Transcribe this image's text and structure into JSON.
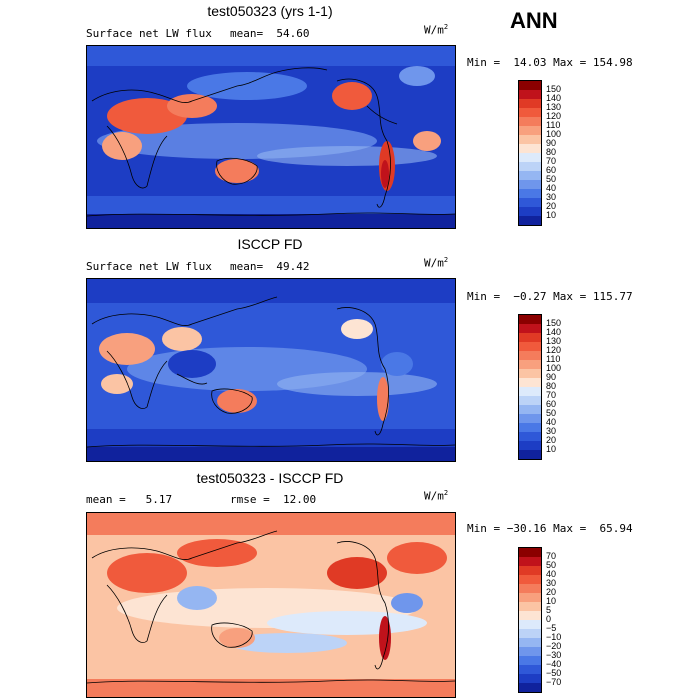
{
  "season": "ANN",
  "panels": [
    {
      "title": "test050323 (yrs 1-1)",
      "left_text": "Surface net LW flux",
      "right_text": "mean=  54.60",
      "units_base": "W/m",
      "units_exp": "2",
      "minmax": "Min =  14.03 Max = 154.98",
      "levels": [
        "150",
        "140",
        "130",
        "120",
        "110",
        "100",
        "90",
        "80",
        "70",
        "60",
        "50",
        "40",
        "30",
        "20",
        "10"
      ],
      "colors": [
        "#8b0000",
        "#c0121b",
        "#e03a25",
        "#f05a3c",
        "#f47c5c",
        "#f8a07e",
        "#fbc4a4",
        "#fde4d3",
        "#ddeafb",
        "#bcd3f7",
        "#95b6f2",
        "#6f96ec",
        "#4a78e6",
        "#2f58d8",
        "#1d3dc4",
        "#10229d"
      ]
    },
    {
      "title": "ISCCP FD",
      "left_text": "Surface net LW flux",
      "right_text": "mean=  49.42",
      "units_base": "W/m",
      "units_exp": "2",
      "minmax": "Min =  −0.27 Max = 115.77",
      "levels": [
        "150",
        "140",
        "130",
        "120",
        "110",
        "100",
        "90",
        "80",
        "70",
        "60",
        "50",
        "40",
        "30",
        "20",
        "10"
      ],
      "colors": [
        "#8b0000",
        "#c0121b",
        "#e03a25",
        "#f05a3c",
        "#f47c5c",
        "#f8a07e",
        "#fbc4a4",
        "#fde4d3",
        "#ddeafb",
        "#bcd3f7",
        "#95b6f2",
        "#6f96ec",
        "#4a78e6",
        "#2f58d8",
        "#1d3dc4",
        "#10229d"
      ]
    },
    {
      "title": "test050323 - ISCCP FD",
      "left_text": "mean =   5.17",
      "right_text": "rmse =  12.00",
      "units_base": "W/m",
      "units_exp": "2",
      "minmax": "Min = −30.16 Max =  65.94",
      "levels": [
        "70",
        "50",
        "40",
        "30",
        "20",
        "10",
        "5",
        "0",
        "−5",
        "−10",
        "−20",
        "−30",
        "−40",
        "−50",
        "−70"
      ],
      "colors": [
        "#8b0000",
        "#c0121b",
        "#e03a25",
        "#f05a3c",
        "#f47c5c",
        "#f8a07e",
        "#fbc4a4",
        "#fde4d3",
        "#ddeafb",
        "#bcd3f7",
        "#95b6f2",
        "#6f96ec",
        "#4a78e6",
        "#2f58d8",
        "#1d3dc4",
        "#10229d"
      ]
    }
  ],
  "chart_data": [
    {
      "type": "heatmap",
      "title": "test050323 (yrs 1-1)",
      "variable": "Surface net LW flux",
      "units": "W/m2",
      "mean": 54.6,
      "min": 14.03,
      "max": 154.98,
      "contour_levels": [
        10,
        20,
        30,
        40,
        50,
        60,
        70,
        80,
        90,
        100,
        110,
        120,
        130,
        140,
        150
      ]
    },
    {
      "type": "heatmap",
      "title": "ISCCP FD",
      "variable": "Surface net LW flux",
      "units": "W/m2",
      "mean": 49.42,
      "min": -0.27,
      "max": 115.77,
      "contour_levels": [
        10,
        20,
        30,
        40,
        50,
        60,
        70,
        80,
        90,
        100,
        110,
        120,
        130,
        140,
        150
      ]
    },
    {
      "type": "heatmap",
      "title": "test050323 - ISCCP FD",
      "units": "W/m2",
      "mean": 5.17,
      "rmse": 12.0,
      "min": -30.16,
      "max": 65.94,
      "contour_levels": [
        -70,
        -50,
        -40,
        -30,
        -20,
        -10,
        -5,
        0,
        5,
        10,
        20,
        30,
        40,
        50,
        70
      ]
    }
  ]
}
